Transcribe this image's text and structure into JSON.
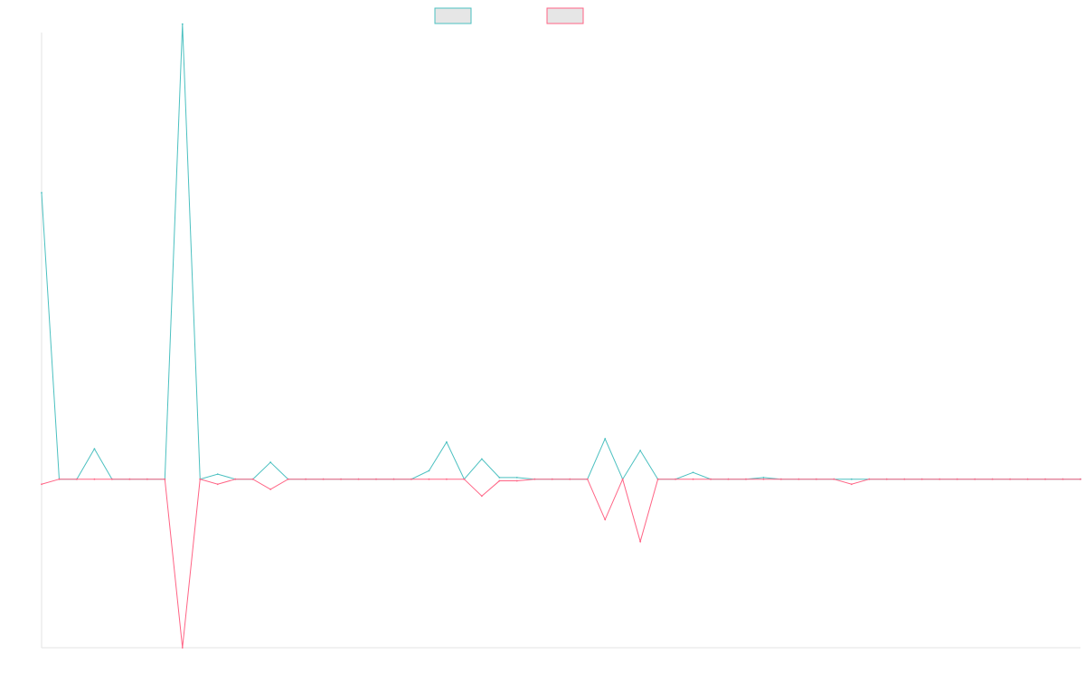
{
  "chart_data": {
    "type": "line",
    "title": "",
    "xlabel": "",
    "ylabel": "",
    "grid": false,
    "legend_position": "top-center",
    "x_count": 60,
    "ylim": [
      -100,
      265
    ],
    "y_baseline": 0,
    "series": [
      {
        "color": "#4bc0c0",
        "fill": "#e6e6e6",
        "values": [
          170,
          0,
          0,
          18,
          0,
          0,
          0,
          0,
          270,
          0,
          3,
          0,
          0,
          10,
          0,
          0,
          0,
          0,
          0,
          0,
          0,
          0,
          5,
          22,
          0,
          12,
          1,
          1,
          0,
          0,
          0,
          0,
          24,
          0,
          17,
          0,
          0,
          4,
          0,
          0,
          0,
          1,
          0,
          0,
          0,
          0,
          0,
          0,
          0,
          0,
          0,
          0,
          0,
          0,
          0,
          0,
          0,
          0,
          0,
          0
        ]
      },
      {
        "color": "#ff6384",
        "fill": "#e6e6e6",
        "values": [
          -3,
          0,
          0,
          0,
          0,
          0,
          0,
          0,
          -100,
          0,
          -3,
          0,
          0,
          -6,
          0,
          0,
          0,
          0,
          0,
          0,
          0,
          0,
          0,
          0,
          0,
          -10,
          -1,
          -1,
          0,
          0,
          0,
          0,
          -24,
          0,
          -37,
          0,
          0,
          0,
          0,
          0,
          0,
          0,
          0,
          0,
          0,
          0,
          -3,
          0,
          0,
          0,
          0,
          0,
          0,
          0,
          0,
          0,
          0,
          0,
          0,
          0
        ]
      }
    ]
  }
}
